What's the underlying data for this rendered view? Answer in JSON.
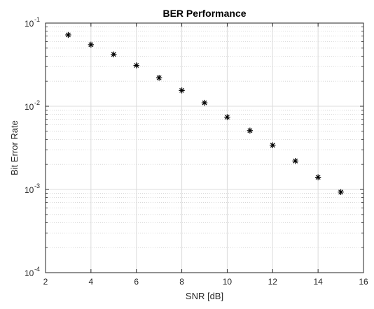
{
  "chart_data": {
    "type": "scatter",
    "title": "BER Performance",
    "xlabel": "SNR [dB]",
    "ylabel": "Bit Error Rate",
    "x_scale": "linear",
    "y_scale": "log",
    "xlim": [
      2,
      16
    ],
    "ylim": [
      0.0001,
      0.1
    ],
    "grid": true,
    "minor_grid": true,
    "marker": "asterisk",
    "marker_color": "#000000",
    "x_ticks": [
      2,
      4,
      6,
      8,
      10,
      12,
      14,
      16
    ],
    "x_tick_labels": [
      "2",
      "4",
      "6",
      "8",
      "10",
      "12",
      "14",
      "16"
    ],
    "y_ticks": [
      0.0001,
      0.001,
      0.01,
      0.1
    ],
    "y_tick_labels": [
      {
        "base": "10",
        "exp": "-4"
      },
      {
        "base": "10",
        "exp": "-3"
      },
      {
        "base": "10",
        "exp": "-2"
      },
      {
        "base": "10",
        "exp": "-1"
      }
    ],
    "series": [
      {
        "x": [
          3,
          4,
          5,
          6,
          7,
          8,
          9,
          10,
          11,
          12,
          13,
          14,
          15
        ],
        "y": [
          0.072,
          0.055,
          0.042,
          0.031,
          0.022,
          0.0155,
          0.011,
          0.0074,
          0.0051,
          0.0034,
          0.0022,
          0.0014,
          0.00093
        ]
      }
    ]
  }
}
